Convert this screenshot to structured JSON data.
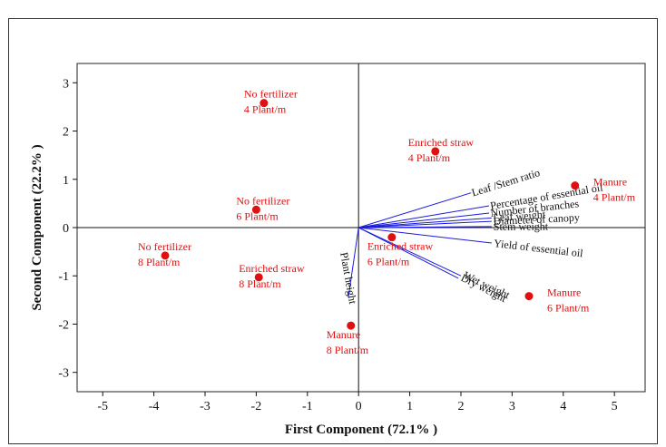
{
  "chart_data": {
    "type": "scatter",
    "xlabel": "First Component (72.1% )",
    "ylabel": "Second Component (22.2% )",
    "xlim": [
      -5.5,
      5.6
    ],
    "ylim": [
      -3.4,
      3.4
    ],
    "xticks": [
      -5,
      -4,
      -3,
      -2,
      -1,
      0,
      1,
      2,
      3,
      4,
      5
    ],
    "yticks": [
      3,
      2,
      1,
      0,
      -1,
      -2,
      -3
    ],
    "point_color": "#e01010",
    "vector_color": "#1a1adc",
    "points": [
      {
        "line1": "No fertilizer",
        "line2": "4 Plant/m",
        "x": -1.85,
        "y": 2.58,
        "label_pos": "above"
      },
      {
        "line1": "Enriched straw",
        "line2": "4 Plant/m",
        "x": 1.5,
        "y": 1.58,
        "label_pos": "above-left"
      },
      {
        "line1": "Manure",
        "line2": "4 Plant/m",
        "x": 4.23,
        "y": 0.87,
        "label_pos": "right"
      },
      {
        "line1": "No fertilizer",
        "line2": "6 Plant/m",
        "x": -2.0,
        "y": 0.37,
        "label_pos": "above"
      },
      {
        "line1": "No fertilizer",
        "line2": "8 Plant/m",
        "x": -3.78,
        "y": -0.58,
        "label_pos": "above-left"
      },
      {
        "line1": "Enriched straw",
        "line2": "8 Plant/m",
        "x": -1.95,
        "y": -1.03,
        "label_pos": "above"
      },
      {
        "line1": "Enriched straw",
        "line2": "6 Plant/m",
        "x": 0.65,
        "y": -0.2,
        "label_pos": "below"
      },
      {
        "line1": "Manure",
        "line2": "6 Plant/m",
        "x": 3.33,
        "y": -1.42,
        "label_pos": "right"
      },
      {
        "line1": "Manure",
        "line2": "8 Plant/m",
        "x": -0.15,
        "y": -2.03,
        "label_pos": "below"
      }
    ],
    "vectors": [
      {
        "name": "Leaf /Stem ratio",
        "x": 2.2,
        "y": 0.72
      },
      {
        "name": "Percentage of essential oil",
        "x": 2.55,
        "y": 0.45
      },
      {
        "name": "Number of branches",
        "x": 2.55,
        "y": 0.3
      },
      {
        "name": "Leaf weight",
        "x": 2.6,
        "y": 0.2
      },
      {
        "name": "Diameter of canopy",
        "x": 2.6,
        "y": 0.13
      },
      {
        "name": "Stem weight",
        "x": 2.6,
        "y": 0.02
      },
      {
        "name": "Yield of essential oil",
        "x": 2.6,
        "y": -0.32
      },
      {
        "name": "Wet weight",
        "x": 2.0,
        "y": -1.0
      },
      {
        "name": "Dry weight",
        "x": 1.95,
        "y": -1.05
      },
      {
        "name": "Plant height",
        "x": -0.2,
        "y": -1.45
      }
    ]
  }
}
